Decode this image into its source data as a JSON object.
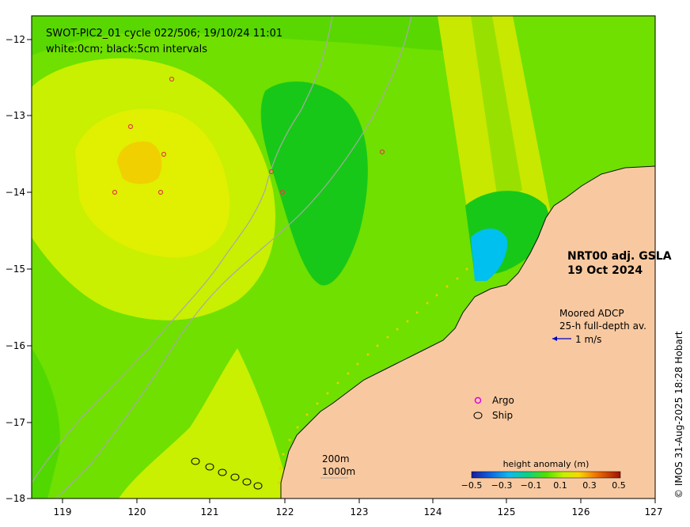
{
  "header": {
    "line1": "SWOT-PIC2_01 cycle 022/506; 19/10/24 11:01",
    "line2": "white:0cm; black:5cm intervals"
  },
  "product": {
    "line1": "NRT00 adj. GSLA",
    "line2": "19 Oct 2024"
  },
  "adcp": {
    "line1": "Moored ADCP",
    "line2": "25-h full-depth av.",
    "scale_label": "1 m/s"
  },
  "legend": {
    "argo": "Argo",
    "ship": "Ship"
  },
  "isobaths": {
    "line1": "200m",
    "line2": "1000m"
  },
  "colorbar": {
    "title": "height anomaly (m)",
    "ticks": [
      "−0.5",
      "−0.3",
      "−0.1",
      "0.1",
      "0.3",
      "0.5"
    ]
  },
  "credit": "© IMOS 31-Aug-2025 18:28 Hobart",
  "axes": {
    "x_ticks": [
      "119",
      "120",
      "121",
      "122",
      "123",
      "124",
      "125",
      "126",
      "127"
    ],
    "y_ticks": [
      "−12",
      "−13",
      "−14",
      "−15",
      "−16",
      "−17",
      "−18"
    ],
    "lon_range": [
      118.65,
      127
    ],
    "lat_range": [
      -11.75,
      -18
    ]
  },
  "colors": {
    "land": "#f8c9a0",
    "sea_base": "#6fe000",
    "high": "#c8f000",
    "peak": "#f0d000",
    "low": "#18c818",
    "trough": "#00c0f0"
  }
}
